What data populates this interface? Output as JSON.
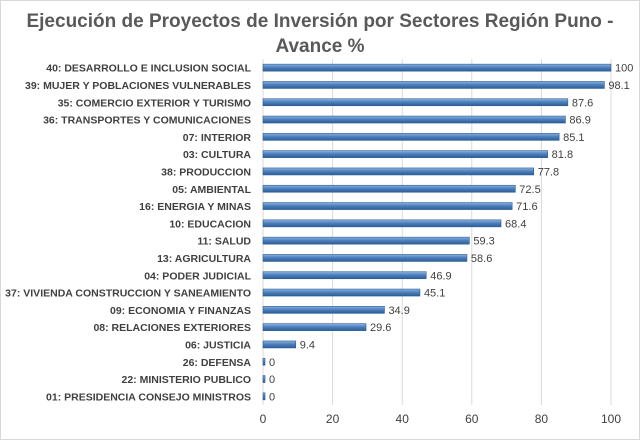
{
  "chart_data": {
    "type": "bar",
    "orientation": "horizontal",
    "title_line1": "Ejecución de Proyectos de Inversión por Sectores Región Puno -",
    "title_line2": "Avance %",
    "categories": [
      "40: DESARROLLO E INCLUSION SOCIAL",
      "39: MUJER Y POBLACIONES VULNERABLES",
      "35: COMERCIO EXTERIOR Y TURISMO",
      "36: TRANSPORTES Y COMUNICACIONES",
      "07: INTERIOR",
      "03: CULTURA",
      "38: PRODUCCION",
      "05: AMBIENTAL",
      "16: ENERGIA Y MINAS",
      "10: EDUCACION",
      "11: SALUD",
      "13: AGRICULTURA",
      "04: PODER JUDICIAL",
      "37: VIVIENDA CONSTRUCCION Y SANEAMIENTO",
      "09: ECONOMIA Y FINANZAS",
      "08: RELACIONES EXTERIORES",
      "06: JUSTICIA",
      "26: DEFENSA",
      "22: MINISTERIO PUBLICO",
      "01: PRESIDENCIA CONSEJO MINISTROS"
    ],
    "values": [
      100,
      98.1,
      87.6,
      86.9,
      85.1,
      81.8,
      77.8,
      72.5,
      71.6,
      68.4,
      59.3,
      58.6,
      46.9,
      45.1,
      34.9,
      29.6,
      9.4,
      0,
      0,
      0
    ],
    "value_labels": [
      "100",
      "98.1",
      "87.6",
      "86.9",
      "85.1",
      "81.8",
      "77.8",
      "72.5",
      "71.6",
      "68.4",
      "59.3",
      "58.6",
      "46.9",
      "45.1",
      "34.9",
      "29.6",
      "9.4",
      "0",
      "0",
      "0"
    ],
    "xlim": [
      0,
      100
    ],
    "xticks": [
      0,
      20,
      40,
      60,
      80,
      100
    ],
    "grid": true,
    "legend": "none",
    "colors": {
      "bar": "#4f81bd",
      "bar_light": "#8db3e2",
      "bar_dark": "#2c5d96",
      "grid": "#d9d9d9",
      "text": "#404040",
      "title": "#595959"
    }
  }
}
